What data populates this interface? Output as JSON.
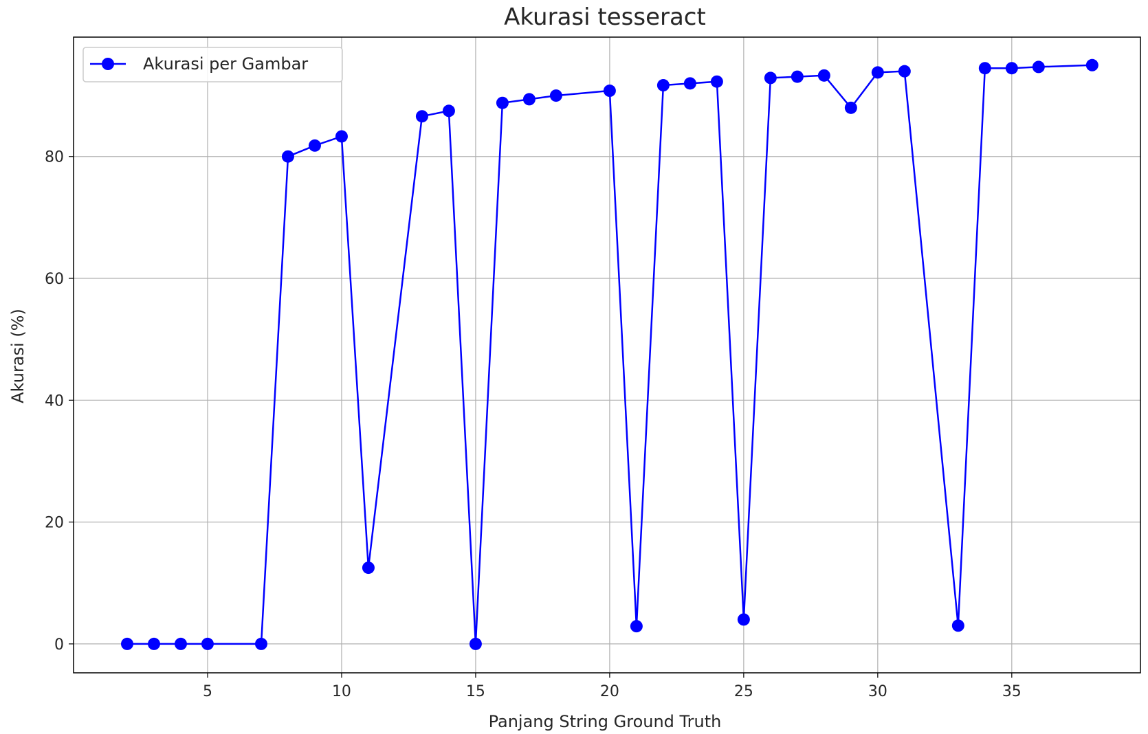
{
  "chart_data": {
    "type": "line",
    "title": "Akurasi tesseract",
    "xlabel": "Panjang String Ground Truth",
    "ylabel": "Akurasi (%)",
    "xlim": [
      0,
      39.8
    ],
    "ylim": [
      -4.75,
      99.6
    ],
    "xticks": [
      5,
      10,
      15,
      20,
      25,
      30,
      35
    ],
    "yticks": [
      0,
      20,
      40,
      60,
      80
    ],
    "grid": true,
    "legend_position": "upper-left",
    "series": [
      {
        "name": "Akurasi per Gambar",
        "color": "#0000ff",
        "marker": "circle",
        "points": [
          {
            "x": 2,
            "y": 0
          },
          {
            "x": 3,
            "y": 0
          },
          {
            "x": 4,
            "y": 0
          },
          {
            "x": 5,
            "y": 0
          },
          {
            "x": 7,
            "y": 0
          },
          {
            "x": 8,
            "y": 80
          },
          {
            "x": 9,
            "y": 81.8
          },
          {
            "x": 10,
            "y": 83.3
          },
          {
            "x": 11,
            "y": 12.5
          },
          {
            "x": 13,
            "y": 86.6
          },
          {
            "x": 14,
            "y": 87.5
          },
          {
            "x": 15,
            "y": 0
          },
          {
            "x": 16,
            "y": 88.8
          },
          {
            "x": 17,
            "y": 89.4
          },
          {
            "x": 18,
            "y": 90
          },
          {
            "x": 20,
            "y": 90.8
          },
          {
            "x": 21,
            "y": 2.9
          },
          {
            "x": 22,
            "y": 91.7
          },
          {
            "x": 23,
            "y": 92
          },
          {
            "x": 24,
            "y": 92.3
          },
          {
            "x": 25,
            "y": 4
          },
          {
            "x": 26,
            "y": 92.9
          },
          {
            "x": 27,
            "y": 93.1
          },
          {
            "x": 28,
            "y": 93.3
          },
          {
            "x": 29,
            "y": 88
          },
          {
            "x": 30,
            "y": 93.8
          },
          {
            "x": 31,
            "y": 94
          },
          {
            "x": 33,
            "y": 3
          },
          {
            "x": 34,
            "y": 94.5
          },
          {
            "x": 35,
            "y": 94.5
          },
          {
            "x": 36,
            "y": 94.7
          },
          {
            "x": 38,
            "y": 95
          }
        ]
      }
    ]
  }
}
